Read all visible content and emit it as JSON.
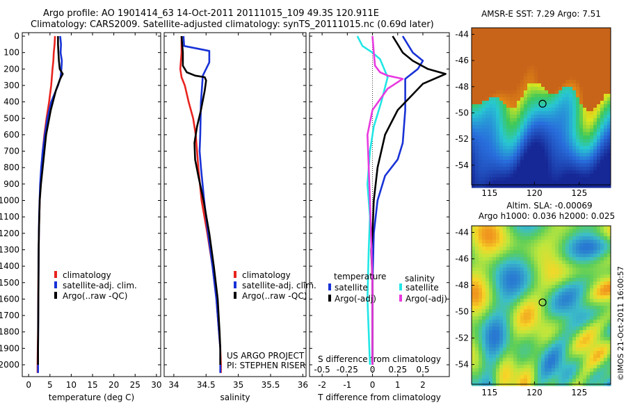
{
  "title": {
    "line1": "Argo profile: AO 1901414_63 14-Oct-2011 20111015_109 49.3S 120.911E",
    "line2": "Climatology: CARS2009. Satellite-adjusted climatology: synTS_20111015.nc (0.69d later)"
  },
  "credits": {
    "project": "US ARGO PROJECT",
    "pi": "PI: STEPHEN RISER"
  },
  "watermark": "©IMOS 21-Oct-2011 16:00:57",
  "colors": {
    "climatology": "#e8231e",
    "satellite": "#1832d6",
    "argo": "#000000",
    "sat_s": "#22e6e6",
    "argo_s": "#e83ae0"
  },
  "depth_ticks": [
    0,
    100,
    200,
    300,
    400,
    500,
    600,
    700,
    800,
    900,
    1000,
    1100,
    1200,
    1300,
    1400,
    1500,
    1600,
    1700,
    1800,
    1900,
    2000
  ],
  "chart_data": [
    {
      "type": "line",
      "xlabel": "temperature (deg C)",
      "xlim": [
        -1.5,
        31
      ],
      "ylim": [
        0,
        2060
      ],
      "xticks": [
        0,
        5,
        10,
        15,
        20,
        25,
        30
      ],
      "legend": [
        "climatology",
        "satellite-adj. clim.",
        "Argo(..raw -QC)"
      ],
      "series": [
        {
          "name": "climatology",
          "color_key": "climatology",
          "x": [
            6.2,
            6.1,
            5.9,
            5.8,
            5.6,
            5.3,
            4.8,
            4.2,
            3.7,
            3.3,
            3.0,
            2.8,
            2.6,
            2.4,
            2.3,
            2.25,
            2.2,
            2.15,
            2.1,
            2.1
          ],
          "y": [
            0,
            50,
            100,
            150,
            200,
            300,
            400,
            500,
            600,
            700,
            800,
            900,
            1000,
            1200,
            1400,
            1600,
            1800,
            1900,
            2000,
            2050
          ]
        },
        {
          "name": "satellite-adj. clim.",
          "color_key": "satellite",
          "x": [
            7.4,
            7.6,
            7.5,
            7.8,
            7.7,
            7.5,
            6.9,
            5.3,
            4.4,
            3.8,
            3.3,
            2.95,
            2.7,
            2.45,
            2.35,
            2.3,
            2.25,
            2.2,
            2.2,
            2.2
          ],
          "y": [
            0,
            50,
            100,
            150,
            200,
            250,
            300,
            400,
            500,
            600,
            700,
            800,
            900,
            1100,
            1300,
            1500,
            1700,
            1900,
            2000,
            2050
          ]
        },
        {
          "name": "Argo(..raw -QC)",
          "color_key": "argo",
          "x": [
            6.9,
            6.9,
            7.0,
            7.1,
            7.3,
            8.0,
            7.4,
            6.4,
            5.2,
            4.1,
            3.5,
            2.9,
            2.6,
            2.4,
            2.35,
            2.3,
            2.25,
            2.2,
            2.2
          ],
          "y": [
            0,
            50,
            100,
            150,
            200,
            230,
            260,
            330,
            450,
            600,
            750,
            900,
            1000,
            1200,
            1300,
            1500,
            1700,
            1900,
            2000
          ]
        }
      ]
    },
    {
      "type": "line",
      "xlabel": "salinity",
      "xlim": [
        33.85,
        36.05
      ],
      "ylim": [
        0,
        2060
      ],
      "xticks": [
        34,
        34.5,
        35,
        35.5,
        36
      ],
      "legend": [
        "climatology",
        "satellite-adj. clim.",
        "Argo(..raw -QC)"
      ],
      "series": [
        {
          "name": "climatology",
          "color_key": "climatology",
          "x": [
            34.12,
            34.12,
            34.11,
            34.1,
            34.12,
            34.17,
            34.23,
            34.3,
            34.34,
            34.36,
            34.38,
            34.43,
            34.52,
            34.6,
            34.66,
            34.7,
            34.72,
            34.73,
            34.73
          ],
          "y": [
            0,
            100,
            150,
            200,
            250,
            300,
            400,
            500,
            600,
            700,
            800,
            1000,
            1200,
            1400,
            1600,
            1800,
            1900,
            2000,
            2050
          ]
        },
        {
          "name": "satellite-adj. clim.",
          "color_key": "satellite",
          "x": [
            34.15,
            34.16,
            34.55,
            34.55,
            34.45,
            34.42,
            34.41,
            34.4,
            34.42,
            34.47,
            34.53,
            34.6,
            34.66,
            34.7,
            34.72,
            34.72,
            34.72
          ],
          "y": [
            0,
            60,
            90,
            160,
            240,
            400,
            600,
            700,
            800,
            1000,
            1200,
            1400,
            1600,
            1800,
            1900,
            2000,
            2050
          ]
        },
        {
          "name": "Argo(..raw -QC)",
          "color_key": "argo",
          "x": [
            34.12,
            34.14,
            34.14,
            34.2,
            34.33,
            34.48,
            34.5,
            34.48,
            34.42,
            34.36,
            34.32,
            34.33,
            34.38,
            34.46,
            34.55,
            34.62,
            34.68,
            34.71,
            34.72,
            34.72
          ],
          "y": [
            0,
            100,
            180,
            220,
            240,
            250,
            270,
            330,
            450,
            550,
            650,
            750,
            850,
            1000,
            1200,
            1400,
            1600,
            1800,
            1900,
            2000
          ]
        }
      ]
    },
    {
      "type": "line",
      "xlabel": "T difference from climatology",
      "xlabel_top": "S difference from climatology",
      "xlim": [
        -2.5,
        3.05
      ],
      "ylim": [
        0,
        2060
      ],
      "xticks": [
        -2,
        -1,
        0,
        1,
        2
      ],
      "xticks_top": [
        "-0.5",
        "-0.25",
        "0",
        "0.25",
        "0.5"
      ],
      "xticks_top_pos": [
        -2,
        -1,
        0,
        1,
        2
      ],
      "legend_title_t": "temperature",
      "legend_title_s": "salinity",
      "legend": [
        "satellite",
        "Argo(-adj)"
      ],
      "legend_s": [
        "satellite",
        "Argo(-adj)"
      ],
      "series": [
        {
          "name": "satellite",
          "color_key": "satellite",
          "x": [
            1.2,
            1.4,
            1.6,
            2.0,
            1.8,
            1.3,
            1.3,
            1.3,
            1.25,
            1.2,
            1.0,
            0.5,
            0.2,
            0.05,
            0.0,
            0.0,
            0.0,
            0.0
          ],
          "y": [
            0,
            50,
            100,
            150,
            200,
            260,
            330,
            450,
            550,
            650,
            750,
            850,
            1000,
            1200,
            1500,
            1700,
            1900,
            2000
          ]
        },
        {
          "name": "Argo(-adj)",
          "color_key": "argo",
          "x": [
            0.8,
            1.0,
            1.2,
            1.6,
            2.2,
            2.9,
            2.0,
            1.0,
            0.5,
            0.2,
            0.05,
            0.0,
            -0.05,
            0.0,
            0.0,
            0.0
          ],
          "y": [
            0,
            50,
            100,
            150,
            200,
            230,
            290,
            450,
            600,
            800,
            1000,
            1200,
            1300,
            1500,
            1800,
            2000
          ]
        },
        {
          "name": "satellite",
          "color_key": "sat_s",
          "x": [
            -0.6,
            -0.4,
            0.0,
            0.3,
            0.6,
            0.35,
            0.05,
            -0.1,
            -0.2,
            -0.1,
            -0.15,
            -0.2,
            -0.15,
            -0.1
          ],
          "y": [
            0,
            60,
            100,
            140,
            250,
            400,
            550,
            700,
            900,
            1100,
            1300,
            1600,
            1800,
            2000
          ]
        },
        {
          "name": "Argo(-adj)",
          "color_key": "argo_s",
          "x": [
            0.0,
            0.05,
            0.1,
            0.3,
            0.6,
            1.2,
            0.6,
            0.0,
            -0.2,
            -0.15,
            -0.1,
            0.0,
            0.0
          ],
          "y": [
            0,
            100,
            180,
            220,
            240,
            260,
            320,
            450,
            600,
            800,
            1000,
            1500,
            2000
          ]
        }
      ]
    },
    {
      "type": "heatmap",
      "title": "AMSR-E SST: 7.29 Argo: 7.51",
      "xticks": [
        115,
        120,
        125
      ],
      "yticks": [
        -44,
        -46,
        -48,
        -50,
        -52,
        -54
      ],
      "xlim": [
        113,
        128.5
      ],
      "ylim": [
        -55.5,
        -43.5
      ],
      "marker": {
        "lon": 120.911,
        "lat": -49.3
      }
    },
    {
      "type": "heatmap",
      "title_line1": "Altim. SLA: -0.00069",
      "title_line2": "Argo h1000: 0.036 h2000: 0.025",
      "xticks": [
        115,
        120,
        125
      ],
      "yticks": [
        -44,
        -46,
        -48,
        -50,
        -52,
        -54
      ],
      "xlim": [
        113,
        128.5
      ],
      "ylim": [
        -55.5,
        -43.5
      ],
      "marker": {
        "lon": 120.911,
        "lat": -49.3
      }
    }
  ]
}
